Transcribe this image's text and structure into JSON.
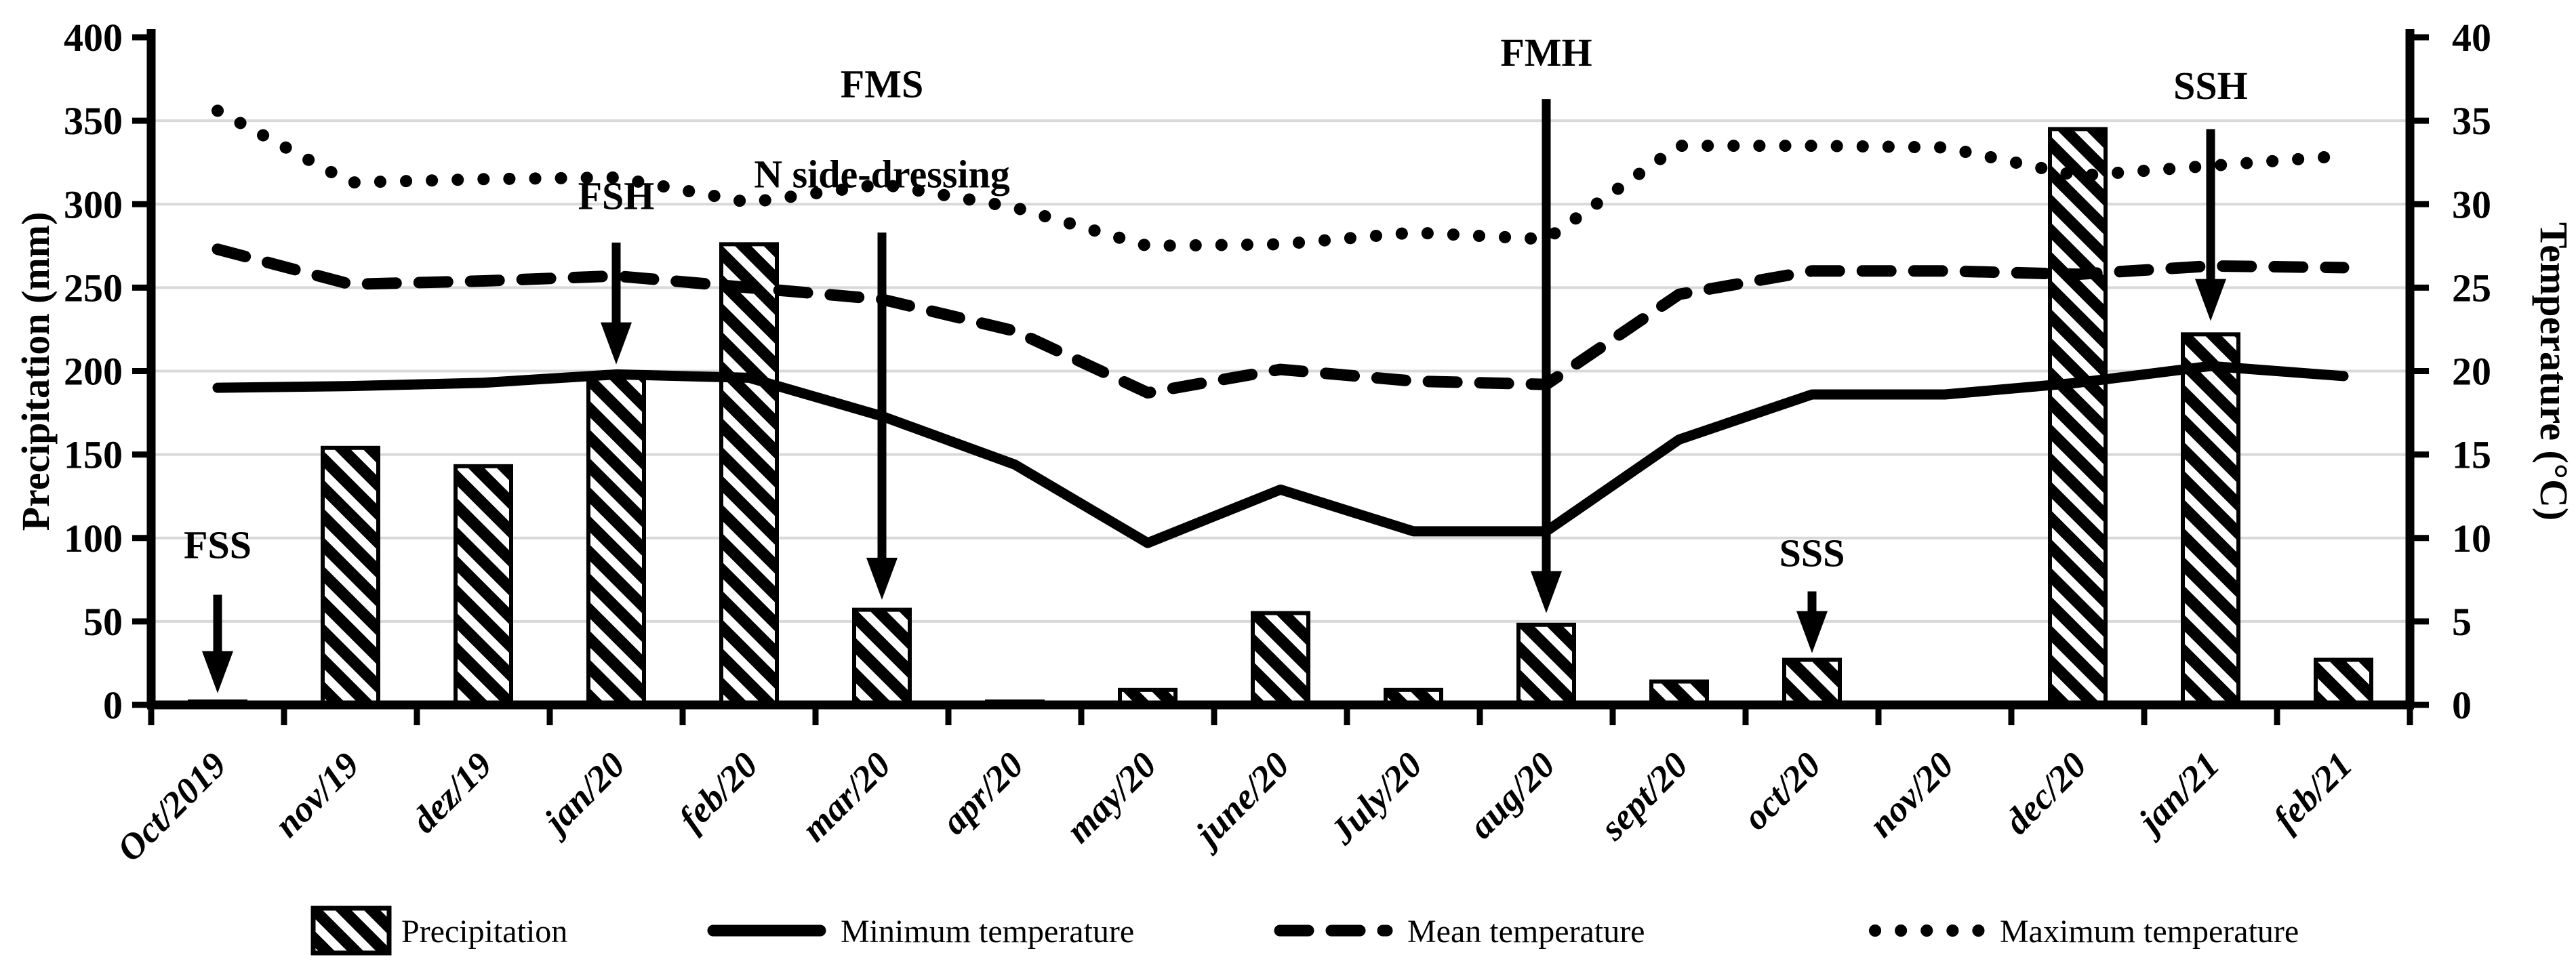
{
  "chart_data": {
    "type": "bar",
    "subtype": "combo-bar-line",
    "title": "",
    "categories": [
      "Oct/2019",
      "nov/19",
      "dez/19",
      "jan/20",
      "feb/20",
      "mar/20",
      "apr/20",
      "may/20",
      "june/20",
      "July/20",
      "aug/20",
      "sept/20",
      "oct/20",
      "nov/20",
      "dec/20",
      "jan/21",
      "feb/21"
    ],
    "series": [
      {
        "name": "Precipitation",
        "type": "bar",
        "axis": "left",
        "unit": "mm",
        "style": "hatched",
        "values": [
          2,
          154,
          143,
          197,
          276,
          57,
          2,
          9,
          55,
          9,
          48,
          14,
          27,
          0,
          345,
          222,
          27
        ]
      },
      {
        "name": "Minimum temperature",
        "type": "line",
        "axis": "right",
        "unit": "°C",
        "style": "solid",
        "values": [
          19.0,
          19.1,
          19.3,
          19.8,
          19.6,
          17.3,
          14.4,
          9.7,
          12.9,
          10.4,
          10.4,
          15.9,
          18.6,
          18.6,
          19.3,
          20.3,
          19.7
        ]
      },
      {
        "name": "Mean temperature",
        "type": "line",
        "axis": "right",
        "unit": "°C",
        "style": "dashed",
        "values": [
          27.3,
          25.2,
          25.4,
          25.7,
          25.0,
          24.3,
          22.4,
          18.7,
          20.1,
          19.4,
          19.2,
          24.6,
          26.0,
          26.0,
          25.8,
          26.3,
          26.2
        ]
      },
      {
        "name": "Maximum temperature",
        "type": "line",
        "axis": "right",
        "unit": "°C",
        "style": "dotted",
        "values": [
          35.6,
          31.3,
          31.5,
          31.6,
          30.1,
          31.2,
          29.8,
          27.5,
          27.6,
          28.3,
          27.9,
          33.5,
          33.5,
          33.4,
          31.7,
          32.3,
          32.9
        ]
      }
    ],
    "ylabel_left": "Precipitation (mm)",
    "ylabel_right": "Temperature (°C)",
    "y_left": {
      "min": 0,
      "max": 400,
      "step": 50,
      "tick_labels": [
        "0",
        "50",
        "100",
        "150",
        "200",
        "250",
        "300",
        "350",
        "400"
      ]
    },
    "y_right": {
      "min": 0,
      "max": 40,
      "step": 5,
      "tick_labels": [
        "0",
        "5",
        "10",
        "15",
        "20",
        "25",
        "30",
        "35",
        "40"
      ]
    },
    "grid": {
      "horizontal": true,
      "vertical": false
    },
    "legend_position": "bottom",
    "annotations": [
      {
        "label": "FSS",
        "category": "Oct/2019",
        "category_index": 0,
        "label_y_mm": 88,
        "arrow_from_mm": 66,
        "arrow_to_mm": 7
      },
      {
        "label": "FSH",
        "category": "jan/20",
        "category_index": 3,
        "label_y_mm": 297,
        "arrow_from_mm": 277,
        "arrow_to_mm": 204
      },
      {
        "label": "FMS",
        "sublabel": "N side-dressing",
        "category": "mar/20",
        "category_index": 5,
        "label_y_mm": 364,
        "sublabel_y_mm": 310,
        "arrow_from_mm": 283,
        "arrow_to_mm": 63
      },
      {
        "label": "FMH",
        "category": "aug/20",
        "category_index": 10,
        "label_y_mm": 383,
        "arrow_from_mm": 363,
        "arrow_to_mm": 55
      },
      {
        "label": "SSS",
        "category": "oct/20",
        "category_index": 12,
        "label_y_mm": 83,
        "arrow_from_mm": 68,
        "arrow_to_mm": 31
      },
      {
        "label": "SSH",
        "category": "jan/21",
        "category_index": 15,
        "label_y_mm": 363,
        "arrow_from_mm": 345,
        "arrow_to_mm": 230
      }
    ],
    "colors": {
      "foreground": "#000000",
      "grid": "#d9d9d9",
      "background": "#ffffff"
    }
  }
}
